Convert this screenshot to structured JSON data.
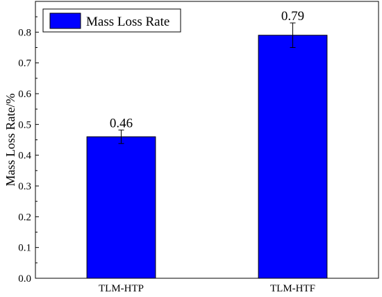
{
  "chart_data": {
    "type": "bar",
    "categories": [
      "TLM-HTP",
      "TLM-HTF"
    ],
    "series": [
      {
        "name": "Mass Loss Rate",
        "values": [
          0.46,
          0.79
        ],
        "error": [
          0.022,
          0.04
        ],
        "data_labels": [
          "0.46",
          "0.79"
        ]
      }
    ],
    "xlabel": "",
    "ylabel": "Mass Loss Rate/%",
    "ylim": [
      0,
      0.9
    ],
    "yticks": [
      0.0,
      0.1,
      0.2,
      0.3,
      0.4,
      0.5,
      0.6,
      0.7,
      0.8
    ],
    "ytick_labels": [
      "0.0",
      "0.1",
      "0.2",
      "0.3",
      "0.4",
      "0.5",
      "0.6",
      "0.7",
      "0.8"
    ],
    "grid": false,
    "legend_position": "top-left",
    "bar_color": "#0000ff",
    "edge_color": "#000000"
  }
}
